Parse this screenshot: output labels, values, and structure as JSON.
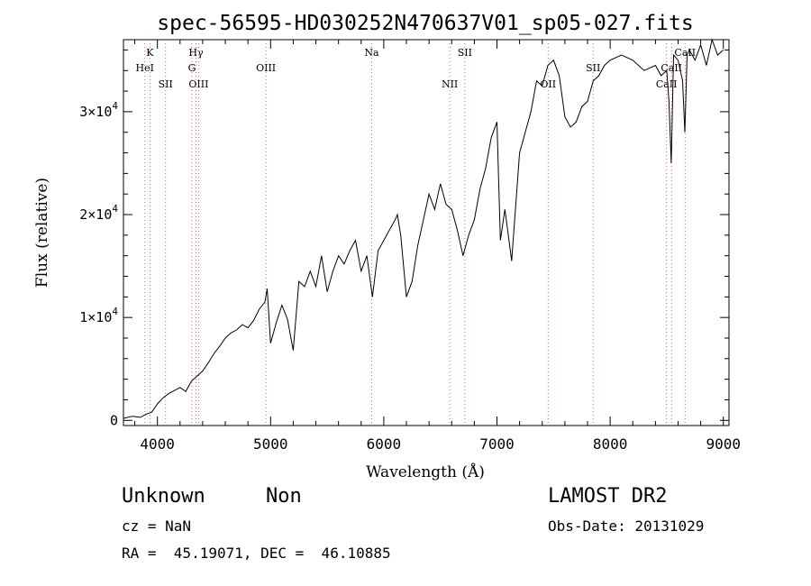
{
  "chart_data": {
    "type": "line",
    "title": "spec-56595-HD030252N470637V01_sp05-027.fits",
    "xlabel": "Wavelength (Å)",
    "ylabel": "Flux (relative)",
    "xlim": [
      3700,
      9050
    ],
    "ylim": [
      -500,
      37000
    ],
    "xticks": [
      {
        "value": 4000,
        "label": "4000"
      },
      {
        "value": 5000,
        "label": "5000"
      },
      {
        "value": 6000,
        "label": "6000"
      },
      {
        "value": 7000,
        "label": "7000"
      },
      {
        "value": 8000,
        "label": "8000"
      },
      {
        "value": 9000,
        "label": "9000"
      }
    ],
    "yticks": [
      {
        "value": 0,
        "mant": "0",
        "exp": ""
      },
      {
        "value": 10000,
        "mant": "1×10",
        "exp": "4"
      },
      {
        "value": 20000,
        "mant": "2×10",
        "exp": "4"
      },
      {
        "value": 30000,
        "mant": "3×10",
        "exp": "4"
      }
    ],
    "grid": false,
    "series": [
      {
        "x": [
          3700,
          3780,
          3850,
          3900,
          3950,
          4000,
          4050,
          4100,
          4150,
          4200,
          4250,
          4300,
          4350,
          4400,
          4450,
          4500,
          4550,
          4600,
          4650,
          4700,
          4750,
          4800,
          4850,
          4900,
          4950,
          4970,
          5000,
          5050,
          5100,
          5150,
          5200,
          5250,
          5300,
          5350,
          5400,
          5450,
          5500,
          5550,
          5600,
          5650,
          5700,
          5750,
          5800,
          5850,
          5900,
          5950,
          6000,
          6050,
          6100,
          6120,
          6150,
          6200,
          6250,
          6300,
          6350,
          6400,
          6450,
          6500,
          6550,
          6600,
          6650,
          6700,
          6750,
          6800,
          6850,
          6900,
          6950,
          7000,
          7030,
          7070,
          7100,
          7130,
          7200,
          7300,
          7350,
          7400,
          7450,
          7500,
          7550,
          7600,
          7650,
          7700,
          7750,
          7800,
          7850,
          7900,
          7950,
          8000,
          8100,
          8200,
          8300,
          8400,
          8450,
          8500,
          8520,
          8540,
          8560,
          8600,
          8640,
          8660,
          8680,
          8700,
          8750,
          8800,
          8850,
          8900,
          8950,
          9000
        ],
        "y": [
          200,
          400,
          300,
          600,
          800,
          1600,
          2200,
          2600,
          2900,
          3200,
          2800,
          3800,
          4300,
          4800,
          5600,
          6500,
          7200,
          8000,
          8500,
          8800,
          9300,
          9000,
          9700,
          10800,
          11500,
          12800,
          7500,
          9500,
          11200,
          9800,
          6800,
          13500,
          13000,
          14500,
          13000,
          16000,
          12500,
          14500,
          16000,
          15200,
          16500,
          17500,
          14500,
          16000,
          12000,
          16500,
          17500,
          18500,
          19500,
          20000,
          18000,
          12000,
          13500,
          17000,
          19500,
          22000,
          20500,
          23000,
          21000,
          20500,
          18500,
          16000,
          18000,
          19500,
          22500,
          24500,
          27500,
          29000,
          17500,
          20500,
          18000,
          15500,
          26000,
          30000,
          33000,
          32500,
          34500,
          35000,
          33500,
          29500,
          28500,
          29000,
          30500,
          31000,
          33000,
          33500,
          34500,
          35000,
          35500,
          35000,
          34000,
          34500,
          33500,
          34000,
          31000,
          25000,
          35500,
          35000,
          33000,
          28000,
          35500,
          36000,
          35000,
          36500,
          34500,
          37000,
          35500,
          36000
        ]
      }
    ],
    "lines": [
      {
        "wl": 3934,
        "label": "K",
        "row": 1
      },
      {
        "wl": 3889,
        "label": "HeI",
        "row": 2
      },
      {
        "wl": 4072,
        "label": "SII",
        "row": 3
      },
      {
        "wl": 4341,
        "label": "Hγ",
        "row": 1
      },
      {
        "wl": 4305,
        "label": "G",
        "row": 2
      },
      {
        "wl": 4364,
        "label": "OIII",
        "row": 3
      },
      {
        "wl": 4959,
        "label": "OIII",
        "row": 2
      },
      {
        "wl": 5893,
        "label": "Na",
        "row": 1
      },
      {
        "wl": 6583,
        "label": "NII",
        "row": 3
      },
      {
        "wl": 6716,
        "label": "SII",
        "row": 1
      },
      {
        "wl": 7452,
        "label": "OII",
        "row": 3
      },
      {
        "wl": 7850,
        "label": "SII",
        "row": 2
      },
      {
        "wl": 8498,
        "label": "CaII",
        "row": 3
      },
      {
        "wl": 8542,
        "label": "CaII",
        "row": 2
      },
      {
        "wl": 8662,
        "label": "CaII",
        "row": 1
      }
    ]
  },
  "footer": {
    "classification": "Unknown",
    "subclass": "Non",
    "survey": "LAMOST DR2",
    "cz": "cz = NaN",
    "obs_date": "Obs-Date: 20131029",
    "radec": "RA =  45.19071, DEC =  46.10885"
  }
}
